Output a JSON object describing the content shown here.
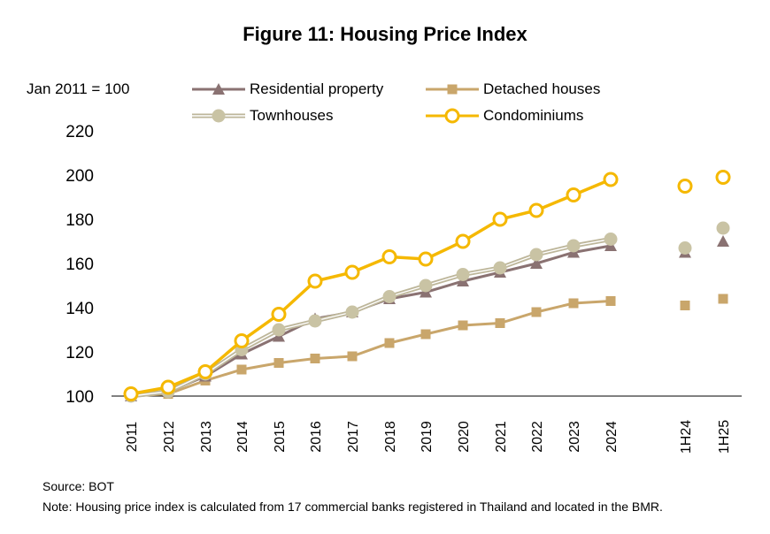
{
  "title": "Figure 11: Housing Price Index",
  "unit_note": "Jan 2011 = 100",
  "source": "Source: BOT",
  "note": "Note: Housing price index is calculated from 17 commercial banks registered in Thailand and located in the BMR.",
  "colors": {
    "residential": "#8a7272",
    "townhouses": "#c9c3a4",
    "townhouses_line": "#bdb69a",
    "detached": "#c9a66b",
    "condominiums": "#f5b800",
    "axis": "#000000"
  },
  "chart_data": {
    "type": "line",
    "title": "Figure 11: Housing Price Index",
    "ylim": [
      100,
      220
    ],
    "yticks": [
      100,
      120,
      140,
      160,
      180,
      200,
      220
    ],
    "categories": [
      "2011",
      "2012",
      "2013",
      "2014",
      "2015",
      "2016",
      "2017",
      "2018",
      "2019",
      "2020",
      "2021",
      "2022",
      "2023",
      "2024",
      "1H24",
      "1H25"
    ],
    "legend_position": "top",
    "grid": false,
    "series": [
      {
        "key": "residential",
        "name": "Residential property",
        "marker": "triangle",
        "values": [
          100,
          102,
          109,
          119,
          127,
          135,
          138,
          144,
          147,
          152,
          156,
          160,
          165,
          168,
          165,
          170
        ]
      },
      {
        "key": "detached",
        "name": "Detached houses",
        "marker": "square",
        "values": [
          100,
          101,
          107,
          112,
          115,
          117,
          118,
          124,
          128,
          132,
          133,
          138,
          142,
          143,
          141,
          144
        ]
      },
      {
        "key": "townhouses",
        "name": "Townhouses",
        "marker": "circle",
        "values": [
          100,
          102,
          110,
          121,
          130,
          134,
          138,
          145,
          150,
          155,
          158,
          164,
          168,
          171,
          167,
          176
        ]
      },
      {
        "key": "condominiums",
        "name": "Condominiums",
        "marker": "ring",
        "values": [
          101,
          104,
          111,
          125,
          137,
          152,
          156,
          163,
          162,
          170,
          180,
          184,
          191,
          198,
          195,
          199
        ]
      }
    ]
  }
}
